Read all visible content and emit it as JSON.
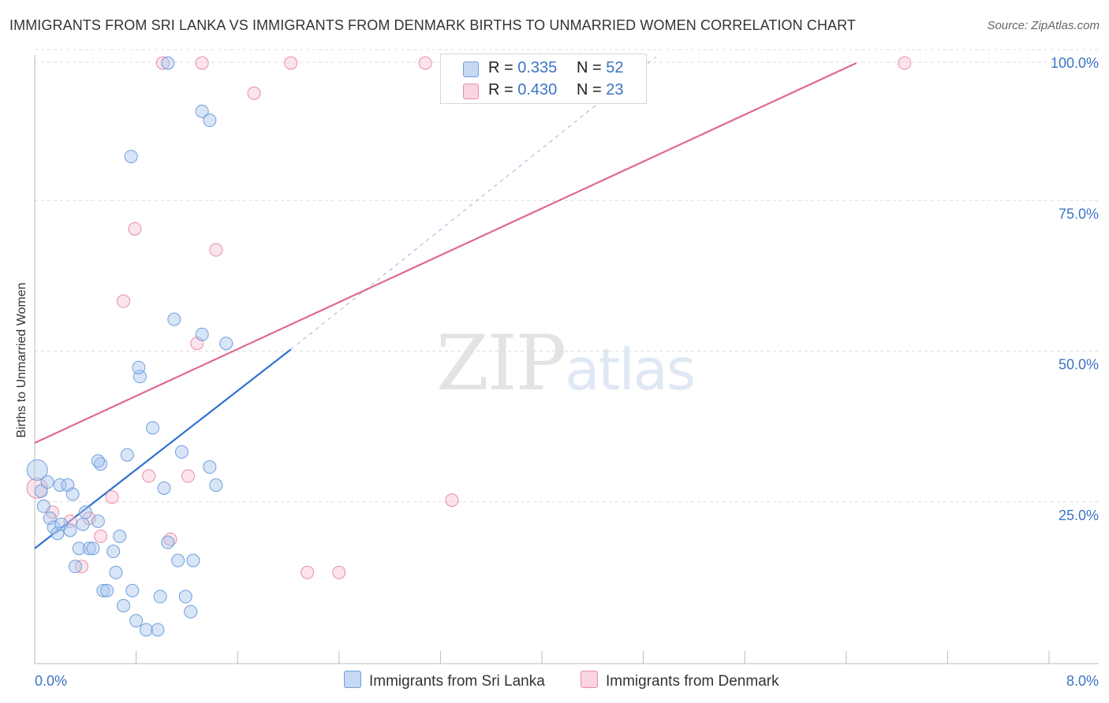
{
  "title": "IMMIGRANTS FROM SRI LANKA VS IMMIGRANTS FROM DENMARK BIRTHS TO UNMARRIED WOMEN CORRELATION CHART",
  "source": "Source: ZipAtlas.com",
  "watermark": {
    "zip": "ZIP",
    "atlas": "atlas"
  },
  "legend": {
    "r_label": "R =",
    "n_label": "N =",
    "rows": [
      {
        "r": "0.335",
        "n": "52"
      },
      {
        "r": "0.430",
        "n": "23"
      }
    ]
  },
  "chart_data": {
    "type": "scatter",
    "title": "IMMIGRANTS FROM SRI LANKA VS IMMIGRANTS FROM DENMARK BIRTHS TO UNMARRIED WOMEN CORRELATION CHART",
    "xlabel": "",
    "ylabel": "Births to Unmarried Women",
    "xlim": [
      0,
      8
    ],
    "ylim": [
      0,
      102
    ],
    "x_tick_labels": [
      "0.0%",
      "8.0%"
    ],
    "y_ticks": [
      25,
      50,
      75,
      100
    ],
    "y_tick_labels": [
      "25.0%",
      "50.0%",
      "75.0%",
      "100.0%"
    ],
    "grid": true,
    "legend_position": "top-center",
    "series": [
      {
        "name": "Immigrants from Sri Lanka",
        "color": "#a8c6ee",
        "edge": "#6f9fdc",
        "line_color": "#2f72d0",
        "r": 0.335,
        "n": 52,
        "trend": {
          "x0": 0.0,
          "y0": 19.5,
          "x1": 2.02,
          "y1": 52.5
        },
        "trend_ext": {
          "x1": 4.9,
          "y1": 101
        },
        "points": [
          [
            0.02,
            32.5
          ],
          [
            0.05,
            29.0
          ],
          [
            0.07,
            26.5
          ],
          [
            0.12,
            24.5
          ],
          [
            0.15,
            23.0
          ],
          [
            0.18,
            22.0
          ],
          [
            0.2,
            30.0
          ],
          [
            0.21,
            23.5
          ],
          [
            0.26,
            30.0
          ],
          [
            0.28,
            22.5
          ],
          [
            0.3,
            28.5
          ],
          [
            0.32,
            16.5
          ],
          [
            0.35,
            19.5
          ],
          [
            0.38,
            23.5
          ],
          [
            0.4,
            25.5
          ],
          [
            0.43,
            19.5
          ],
          [
            0.46,
            19.5
          ],
          [
            0.5,
            24.0
          ],
          [
            0.52,
            33.5
          ],
          [
            0.54,
            12.5
          ],
          [
            0.57,
            12.5
          ],
          [
            0.62,
            19.0
          ],
          [
            0.64,
            15.5
          ],
          [
            0.67,
            21.5
          ],
          [
            0.7,
            10.0
          ],
          [
            0.73,
            35.0
          ],
          [
            0.77,
            12.5
          ],
          [
            0.8,
            7.5
          ],
          [
            0.83,
            48.0
          ],
          [
            0.88,
            6.0
          ],
          [
            0.93,
            39.5
          ],
          [
            0.97,
            6.0
          ],
          [
            0.99,
            11.5
          ],
          [
            1.02,
            29.5
          ],
          [
            1.05,
            20.5
          ],
          [
            1.1,
            57.5
          ],
          [
            1.13,
            17.5
          ],
          [
            1.16,
            35.5
          ],
          [
            1.19,
            11.5
          ],
          [
            1.23,
            9.0
          ],
          [
            1.25,
            17.5
          ],
          [
            1.32,
            55.0
          ],
          [
            1.38,
            33.0
          ],
          [
            1.43,
            30.0
          ],
          [
            1.51,
            53.5
          ],
          [
            0.76,
            84.5
          ],
          [
            1.05,
            100.0
          ],
          [
            1.32,
            92.0
          ],
          [
            1.38,
            90.5
          ],
          [
            0.5,
            34.0
          ],
          [
            0.82,
            49.5
          ],
          [
            0.1,
            30.5
          ]
        ]
      },
      {
        "name": "Immigrants from Denmark",
        "color": "#f6c3d3",
        "edge": "#e88ca9",
        "line_color": "#e06891",
        "r": 0.43,
        "n": 23,
        "trend": {
          "x0": 0.0,
          "y0": 37.0,
          "x1": 6.48,
          "y1": 100.0
        },
        "points": [
          [
            0.02,
            29.5
          ],
          [
            0.14,
            25.5
          ],
          [
            0.28,
            24.0
          ],
          [
            0.37,
            16.5
          ],
          [
            0.43,
            24.5
          ],
          [
            0.52,
            21.5
          ],
          [
            0.61,
            28.0
          ],
          [
            0.7,
            60.5
          ],
          [
            0.79,
            72.5
          ],
          [
            0.9,
            31.5
          ],
          [
            1.01,
            100.0
          ],
          [
            1.07,
            21.0
          ],
          [
            1.21,
            31.5
          ],
          [
            1.28,
            53.5
          ],
          [
            1.32,
            100.0
          ],
          [
            1.43,
            69.0
          ],
          [
            1.73,
            95.0
          ],
          [
            2.02,
            100.0
          ],
          [
            2.15,
            15.5
          ],
          [
            2.4,
            15.5
          ],
          [
            3.08,
            100.0
          ],
          [
            3.29,
            27.5
          ],
          [
            6.86,
            100.0
          ]
        ]
      }
    ]
  }
}
